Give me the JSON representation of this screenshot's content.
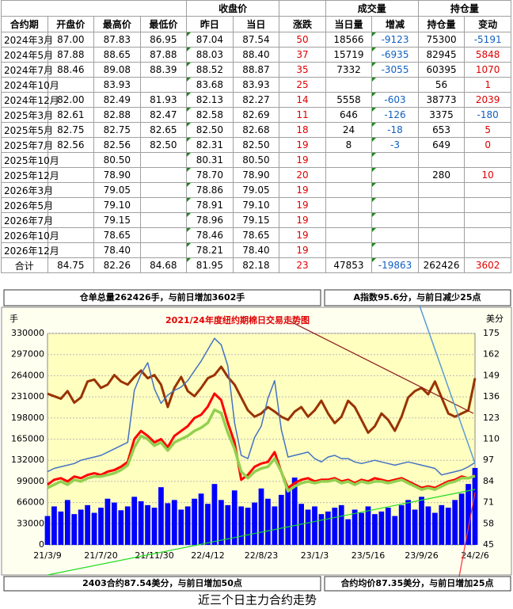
{
  "table": {
    "header_top": [
      "收盘价",
      "成交量",
      "持仓量"
    ],
    "columns": [
      "合约期",
      "开盘价",
      "最高价",
      "最低价",
      "昨日",
      "当日",
      "涨跌",
      "当日量",
      "增减",
      "持仓量",
      "变动"
    ],
    "rows": [
      [
        "2024年3月",
        "87.00",
        "87.83",
        "86.95",
        "87.04",
        "87.54",
        "50",
        "18566",
        "-9123",
        "75300",
        "-5191"
      ],
      [
        "2024年5月",
        "87.88",
        "88.65",
        "87.88",
        "88.03",
        "88.40",
        "37",
        "15719",
        "-6935",
        "82945",
        "5848"
      ],
      [
        "2024年7月",
        "88.46",
        "89.08",
        "88.39",
        "88.52",
        "88.87",
        "35",
        "7332",
        "-3055",
        "60395",
        "1070"
      ],
      [
        "2024年10月",
        null,
        "83.93",
        null,
        "83.68",
        "83.93",
        "25",
        null,
        null,
        "56",
        "1"
      ],
      [
        "2024年12月",
        "82.00",
        "82.49",
        "81.93",
        "82.13",
        "82.27",
        "14",
        "5558",
        "-603",
        "38773",
        "2039"
      ],
      [
        "2025年3月",
        "82.61",
        "82.88",
        "82.47",
        "82.58",
        "82.69",
        "11",
        "646",
        "-126",
        "3375",
        "-180"
      ],
      [
        "2025年5月",
        "82.75",
        "82.75",
        "82.65",
        "82.50",
        "82.68",
        "18",
        "24",
        "-18",
        "653",
        "5"
      ],
      [
        "2025年7月",
        "82.56",
        "82.56",
        "82.50",
        "82.31",
        "82.50",
        "19",
        "8",
        "-3",
        "649",
        "0"
      ],
      [
        "2025年10月",
        null,
        "80.50",
        null,
        "80.31",
        "80.50",
        "19",
        null,
        null,
        null,
        null
      ],
      [
        "2025年12月",
        null,
        "78.90",
        null,
        "78.70",
        "78.90",
        "20",
        null,
        null,
        "280",
        "10"
      ],
      [
        "2026年3月",
        null,
        "79.05",
        null,
        "78.86",
        "79.05",
        "19",
        null,
        null,
        null,
        null
      ],
      [
        "2026年5月",
        null,
        "79.10",
        null,
        "78.91",
        "79.10",
        "19",
        null,
        null,
        null,
        null
      ],
      [
        "2026年7月",
        null,
        "79.15",
        null,
        "78.96",
        "79.15",
        "19",
        null,
        null,
        null,
        null
      ],
      [
        "2026年10月",
        null,
        "78.65",
        null,
        "78.46",
        "78.65",
        "19",
        null,
        null,
        null,
        null
      ],
      [
        "2026年12月",
        null,
        "78.40",
        null,
        "78.21",
        "78.40",
        "19",
        null,
        null,
        null,
        null
      ],
      [
        "合计",
        "84.75",
        "82.26",
        "84.68",
        "81.95",
        "82.18",
        "23",
        "47853",
        "-19863",
        "262426",
        "3602"
      ]
    ]
  },
  "notes": {
    "stock": "仓单总量262426手，与前日增加3602手",
    "index": "A指数95.6分，与前日减少25点",
    "contract": "2403合约87.54美分，与前日增加50点",
    "average": "合约均价87.35美分，与前日增加25点",
    "footer": "近三个日主力合约走势"
  },
  "chart_data": {
    "type": "combo",
    "title": "2021/24年度纽约期棉日交易走势图",
    "y_label": "手",
    "y2_label": "美分",
    "grid": true,
    "categories": [
      "21/3/9",
      null,
      null,
      null,
      null,
      null,
      null,
      null,
      "21/7/20",
      null,
      null,
      null,
      null,
      null,
      null,
      null,
      "21/11/30",
      null,
      null,
      null,
      null,
      null,
      null,
      null,
      "22/4/12",
      null,
      null,
      null,
      null,
      null,
      null,
      null,
      "22/8/23",
      null,
      null,
      null,
      null,
      null,
      null,
      null,
      "23/1/3",
      null,
      null,
      null,
      null,
      null,
      null,
      null,
      "23/5/16",
      null,
      null,
      null,
      null,
      null,
      null,
      null,
      "23/9/26",
      null,
      null,
      null,
      null,
      null,
      null,
      null,
      "24/2/6"
    ],
    "ylim": [
      0,
      330000
    ],
    "yticks": [
      0,
      33000,
      66000,
      99000,
      132000,
      165000,
      198000,
      231000,
      264000,
      297000,
      330000
    ],
    "y2lim": [
      45,
      175
    ],
    "y2ticks": [
      45,
      58,
      71,
      84,
      97,
      110,
      123,
      136,
      149,
      162,
      175
    ],
    "series": [
      {
        "type": "bar",
        "axis": "y",
        "color": "#0000ff",
        "values": [
          45000,
          60000,
          52000,
          70000,
          48000,
          55000,
          62000,
          50000,
          58000,
          72000,
          66000,
          54000,
          60000,
          75000,
          68000,
          62000,
          58000,
          90000,
          65000,
          70000,
          55000,
          60000,
          72000,
          80000,
          64000,
          95000,
          70000,
          62000,
          85000,
          60000,
          58000,
          66000,
          88000,
          72000,
          60000,
          78000,
          92000,
          105000,
          64000,
          55000,
          60000,
          48000,
          52000,
          58000,
          62000,
          40000,
          55000,
          50000,
          60000,
          48000,
          52000,
          58000,
          45000,
          62000,
          70000,
          55000,
          75000,
          60000,
          50000,
          62000,
          58000,
          70000,
          80000,
          95000,
          120000
        ]
      },
      {
        "type": "line",
        "axis": "y",
        "color": "#993300",
        "width": 3,
        "values": [
          236000,
          232000,
          228000,
          240000,
          222000,
          230000,
          255000,
          258000,
          245000,
          250000,
          265000,
          255000,
          250000,
          262000,
          272000,
          260000,
          265000,
          250000,
          215000,
          245000,
          262000,
          240000,
          232000,
          245000,
          260000,
          265000,
          278000,
          262000,
          250000,
          230000,
          210000,
          200000,
          205000,
          215000,
          208000,
          200000,
          195000,
          208000,
          215000,
          200000,
          210000,
          225000,
          205000,
          190000,
          200000,
          225000,
          215000,
          195000,
          175000,
          185000,
          205000,
          195000,
          178000,
          200000,
          230000,
          240000,
          245000,
          235000,
          255000,
          230000,
          205000,
          200000,
          205000,
          210000,
          260000
        ]
      },
      {
        "type": "line",
        "axis": "y2",
        "color": "#4472c4",
        "width": 1.5,
        "values": [
          90,
          92,
          93,
          94,
          95,
          97,
          98,
          99,
          100,
          102,
          104,
          106,
          108,
          140,
          150,
          157,
          141,
          132,
          137,
          140,
          142,
          146,
          152,
          158,
          165,
          172,
          168,
          155,
          120,
          100,
          98,
          111,
          118,
          135,
          146,
          116,
          99,
          100,
          101,
          102,
          98,
          96,
          99,
          100,
          98,
          98,
          96,
          95,
          96,
          97,
          96,
          95,
          94,
          95,
          96,
          95,
          94,
          93,
          92,
          88,
          89,
          90,
          91,
          93,
          95.6
        ]
      },
      {
        "type": "line",
        "axis": "y2",
        "color": "#ff0000",
        "width": 3,
        "values": [
          82,
          85,
          86,
          84,
          87,
          86,
          88,
          89,
          88,
          90,
          91,
          93,
          96,
          110,
          115,
          112,
          108,
          110,
          105,
          112,
          115,
          118,
          123,
          125,
          130,
          138,
          134,
          120,
          108,
          85,
          88,
          93,
          95,
          96,
          102,
          90,
          80,
          83,
          85,
          86,
          84,
          85,
          85,
          86,
          84,
          85,
          83,
          85,
          84,
          86,
          85,
          84,
          85,
          86,
          84,
          82,
          80,
          81,
          80,
          82,
          84,
          85,
          87,
          86,
          87.54
        ]
      },
      {
        "type": "line",
        "axis": "y2",
        "color": "#92d050",
        "width": 3.5,
        "values": [
          80,
          82,
          84,
          82,
          85,
          84,
          86,
          87,
          87,
          88,
          89,
          91,
          94,
          105,
          112,
          110,
          106,
          108,
          103,
          108,
          110,
          112,
          115,
          117,
          120,
          128,
          126,
          114,
          104,
          90,
          86,
          90,
          92,
          93,
          98,
          90,
          78,
          81,
          83,
          84,
          83,
          84,
          84,
          85,
          83,
          84,
          82,
          84,
          83,
          84,
          84,
          83,
          84,
          85,
          83,
          81,
          79,
          80,
          79,
          81,
          83,
          84,
          86,
          86,
          87.35
        ]
      }
    ]
  }
}
